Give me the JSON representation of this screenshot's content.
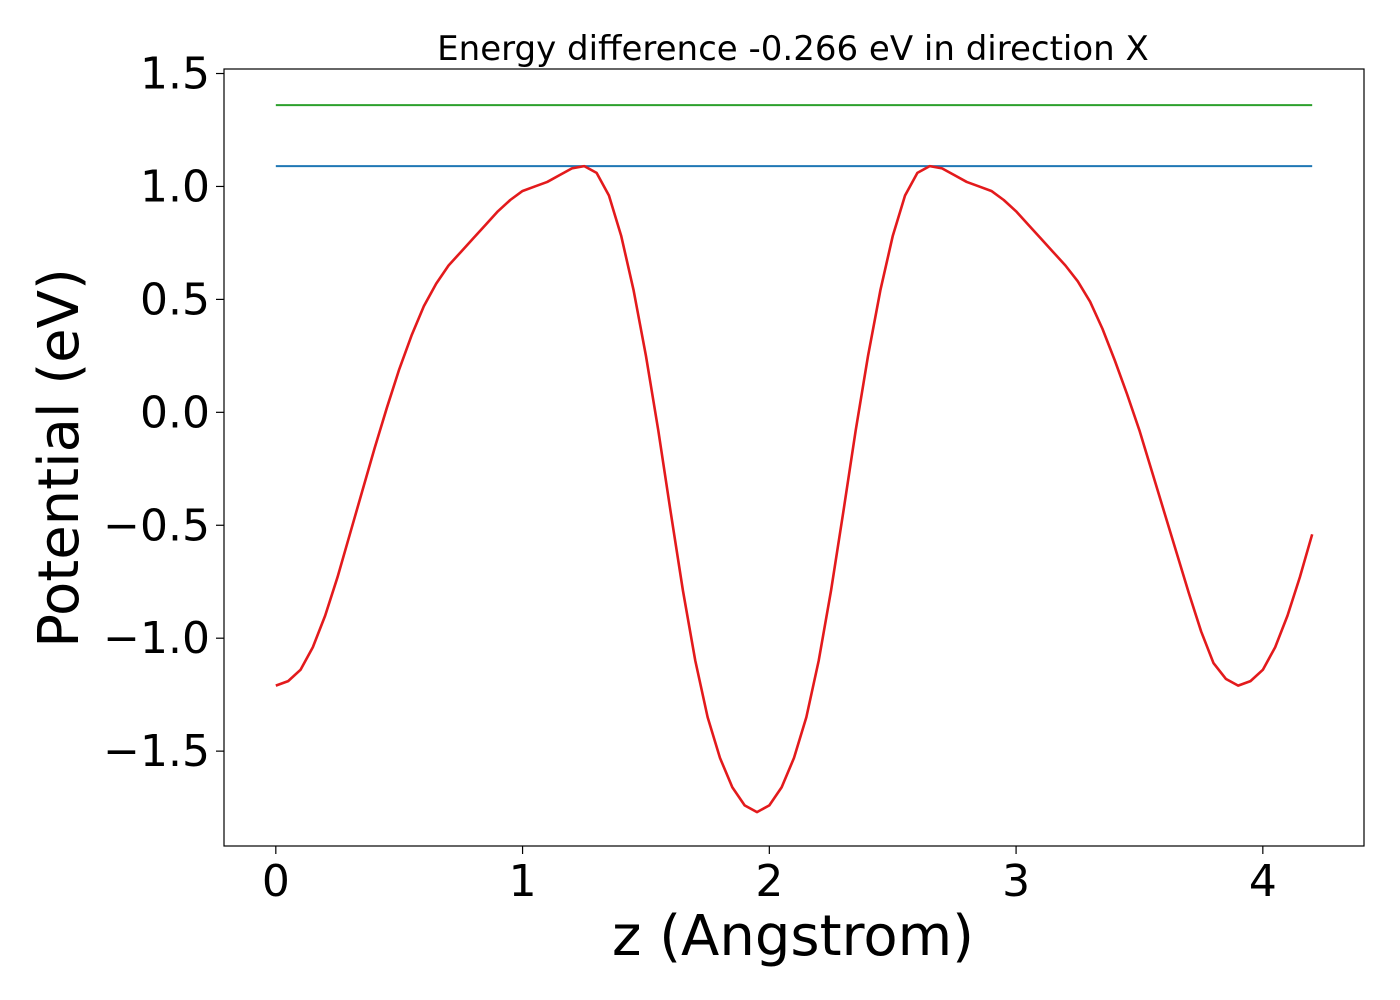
{
  "chart_data": {
    "type": "line",
    "title": "Energy difference -0.266 eV in direction X",
    "xlabel": "z (Angstrom)",
    "ylabel": "Potential (eV)",
    "xlim": [
      -0.21,
      4.41
    ],
    "ylim": [
      -1.92,
      1.52
    ],
    "x_ticks": [
      0,
      1,
      2,
      3,
      4
    ],
    "x_tick_labels": [
      "0",
      "1",
      "2",
      "3",
      "4"
    ],
    "y_ticks": [
      -1.5,
      -1.0,
      -0.5,
      0.0,
      0.5,
      1.0,
      1.5
    ],
    "y_tick_labels": [
      "−1.5",
      "−1.0",
      "−0.5",
      "0.0",
      "0.5",
      "1.0",
      "1.5"
    ],
    "grid": false,
    "legend": "none",
    "series": [
      {
        "color": "#1f77b4",
        "x": [
          0,
          4.2
        ],
        "y": [
          1.09,
          1.09
        ]
      },
      {
        "color": "#2ca02c",
        "x": [
          0,
          4.2
        ],
        "y": [
          1.36,
          1.36
        ]
      },
      {
        "color": "#e31a1c",
        "x": [
          0,
          0.05,
          0.1,
          0.15,
          0.2,
          0.25,
          0.3,
          0.35,
          0.4,
          0.45,
          0.5,
          0.55,
          0.6,
          0.65,
          0.7,
          0.75,
          0.8,
          0.85,
          0.9,
          0.95,
          1.0,
          1.05,
          1.1,
          1.15,
          1.2,
          1.25,
          1.3,
          1.35,
          1.4,
          1.45,
          1.5,
          1.55,
          1.6,
          1.65,
          1.7,
          1.75,
          1.8,
          1.85,
          1.9,
          1.95,
          2.0,
          2.05,
          2.1,
          2.15,
          2.2,
          2.25,
          2.3,
          2.35,
          2.4,
          2.45,
          2.5,
          2.55,
          2.6,
          2.65,
          2.7,
          2.75,
          2.8,
          2.85,
          2.9,
          2.95,
          3.0,
          3.05,
          3.1,
          3.15,
          3.2,
          3.25,
          3.3,
          3.35,
          3.4,
          3.45,
          3.5,
          3.55,
          3.6,
          3.65,
          3.7,
          3.75,
          3.8,
          3.85,
          3.9,
          3.95,
          4.0,
          4.05,
          4.1,
          4.15,
          4.2
        ],
        "y": [
          -1.21,
          -1.19,
          -1.14,
          -1.04,
          -0.9,
          -0.73,
          -0.54,
          -0.35,
          -0.16,
          0.02,
          0.19,
          0.34,
          0.47,
          0.57,
          0.65,
          0.71,
          0.77,
          0.83,
          0.89,
          0.94,
          0.98,
          1.0,
          1.02,
          1.05,
          1.08,
          1.09,
          1.06,
          0.96,
          0.78,
          0.54,
          0.25,
          -0.08,
          -0.44,
          -0.79,
          -1.1,
          -1.35,
          -1.53,
          -1.66,
          -1.74,
          -1.77,
          -1.74,
          -1.66,
          -1.53,
          -1.35,
          -1.1,
          -0.79,
          -0.44,
          -0.08,
          0.25,
          0.54,
          0.78,
          0.96,
          1.06,
          1.09,
          1.08,
          1.05,
          1.02,
          1.0,
          0.98,
          0.94,
          0.89,
          0.83,
          0.77,
          0.71,
          0.65,
          0.58,
          0.49,
          0.37,
          0.23,
          0.08,
          -0.08,
          -0.26,
          -0.44,
          -0.62,
          -0.8,
          -0.97,
          -1.11,
          -1.18,
          -1.21,
          -1.19,
          -1.14,
          -1.04,
          -0.9,
          -0.73,
          -0.54
        ]
      }
    ]
  }
}
